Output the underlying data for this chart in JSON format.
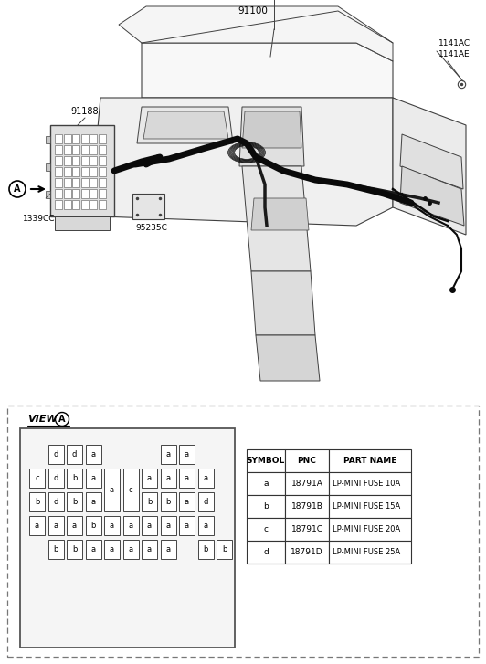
{
  "bg_color": "#ffffff",
  "label_91100": "91100",
  "label_1141AC": "1141AC",
  "label_1141AE": "1141AE",
  "label_91188": "91188",
  "label_1339CC": "1339CC",
  "label_95235C": "95235C",
  "label_A": "A",
  "view_label": "VIEW",
  "table_headers": [
    "SYMBOL",
    "PNC",
    "PART NAME"
  ],
  "table_rows": [
    [
      "a",
      "18791A",
      "LP-MINI FUSE 10A"
    ],
    [
      "b",
      "18791B",
      "LP-MINI FUSE 15A"
    ],
    [
      "c",
      "18791C",
      "LP-MINI FUSE 20A"
    ],
    [
      "d",
      "18791D",
      "LP-MINI FUSE 25A"
    ]
  ],
  "fuse_layout_rows": [
    [
      null,
      "d",
      "d",
      "a",
      null,
      null,
      null,
      "a",
      "a",
      null
    ],
    [
      "c",
      "d",
      "b",
      "a",
      "a",
      "c",
      "a",
      "a",
      "a",
      "a"
    ],
    [
      "b",
      "d",
      "b",
      "a",
      null,
      null,
      "b",
      "b",
      "a",
      "d"
    ],
    [
      "a",
      "a",
      "a",
      "b",
      "a",
      "a",
      "a",
      "a",
      "a",
      "a"
    ],
    [
      null,
      "b",
      "b",
      "a",
      "a",
      "a",
      "a",
      "a",
      null,
      "b",
      "b"
    ]
  ],
  "tall_fuse_col4": "a",
  "tall_fuse_col5": "c"
}
